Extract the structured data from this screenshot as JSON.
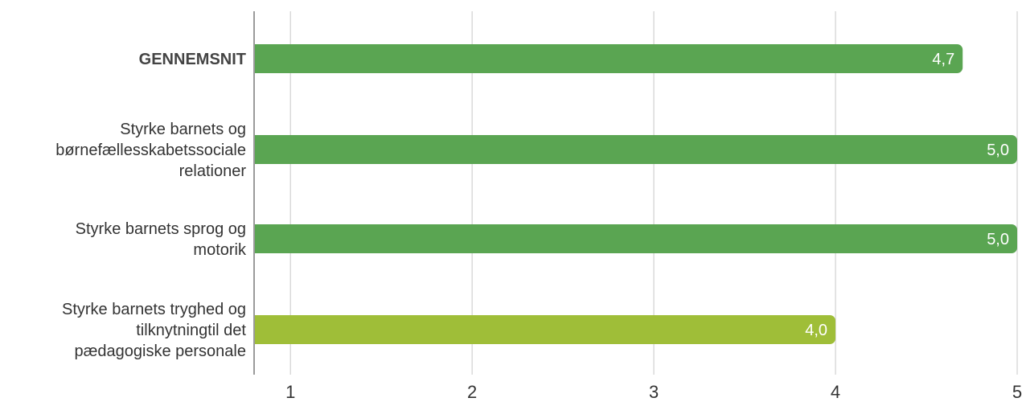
{
  "chart_data": {
    "type": "bar",
    "orientation": "horizontal",
    "categories": [
      "GENNEMSNIT",
      "Styrke barnets og børnefællesskabetssociale relationer",
      "Styrke barnets sprog og motorik",
      "Styrke barnets tryghed og tilknytningtil det pædagogiske personale"
    ],
    "category_lines": [
      [
        "GENNEMSNIT"
      ],
      [
        "Styrke barnets og",
        "børnefællesskabetssociale",
        "relationer"
      ],
      [
        "Styrke barnets sprog og",
        "motorik"
      ],
      [
        "Styrke barnets tryghed og",
        "tilknytningtil det",
        "pædagogiske personale"
      ]
    ],
    "bold_categories": [
      true,
      false,
      false,
      false
    ],
    "values": [
      4.7,
      5.0,
      5.0,
      4.0
    ],
    "value_labels": [
      "4,7",
      "5,0",
      "5,0",
      "4,0"
    ],
    "bar_colors": [
      "#5aa552",
      "#5aa552",
      "#5aa552",
      "#9fbe38"
    ],
    "xlim": [
      0.8,
      5.0
    ],
    "xticks": [
      1,
      2,
      3,
      4,
      5
    ],
    "xtick_labels": [
      "1",
      "2",
      "3",
      "4",
      "5"
    ],
    "grid": true,
    "grid_color": "#c8c8c8",
    "axis_color": "#9a9a9a",
    "title": "",
    "xlabel": "",
    "ylabel": ""
  }
}
